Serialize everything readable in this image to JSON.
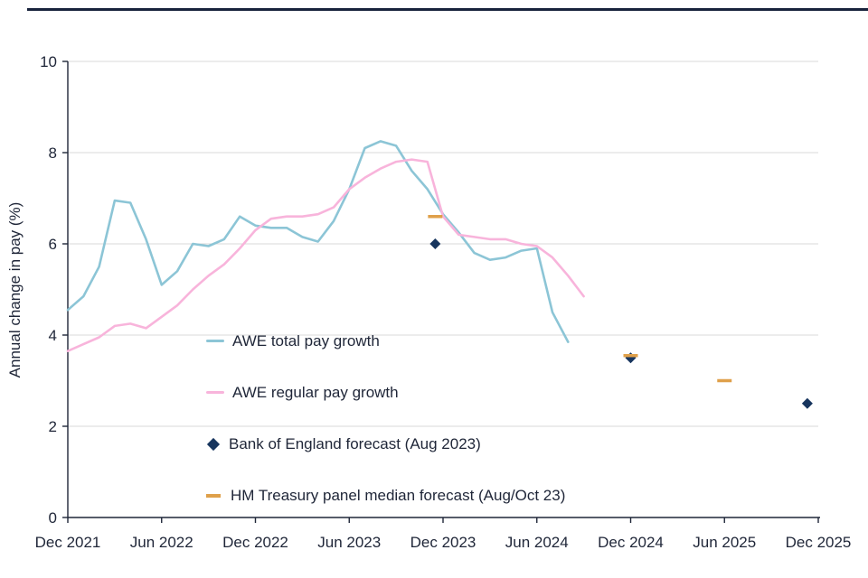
{
  "page": {
    "top_rule_color": "#18233C",
    "background": "#FFFFFF"
  },
  "chart_data": {
    "type": "line",
    "title": "",
    "xlabel": "",
    "ylabel": "Annual change in pay (%)",
    "ylim": [
      0,
      10
    ],
    "y_ticks": [
      0,
      2,
      4,
      6,
      8,
      10
    ],
    "x_tick_labels": [
      "Dec 2021",
      "Jun 2022",
      "Dec 2022",
      "Jun 2023",
      "Dec 2023",
      "Jun 2024",
      "Dec 2024",
      "Jun 2025",
      "Dec 2025"
    ],
    "x_tick_month_index": [
      0,
      6,
      12,
      18,
      24,
      30,
      36,
      42,
      48
    ],
    "months_total": 48,
    "grid": "horizontal-only",
    "legend_position": "inside-left",
    "colors": {
      "axis": "#1F2638",
      "grid": "#D9D9D9",
      "text": "#1F2638"
    },
    "series": [
      {
        "name": "AWE total pay growth",
        "color": "#8CC5D6",
        "start_month": 0,
        "values": [
          4.55,
          4.85,
          5.5,
          6.95,
          6.9,
          6.1,
          5.1,
          5.4,
          6.0,
          5.95,
          6.1,
          6.6,
          6.4,
          6.35,
          6.35,
          6.15,
          6.05,
          6.5,
          7.2,
          8.1,
          8.25,
          8.15,
          7.6,
          7.2,
          6.65,
          6.25,
          5.8,
          5.65,
          5.7,
          5.85,
          5.9,
          4.5,
          3.85
        ]
      },
      {
        "name": "AWE regular pay growth",
        "color": "#F8B4DB",
        "start_month": 0,
        "values": [
          3.65,
          3.8,
          3.95,
          4.2,
          4.25,
          4.15,
          4.4,
          4.65,
          5.0,
          5.3,
          5.55,
          5.9,
          6.3,
          6.55,
          6.6,
          6.6,
          6.65,
          6.8,
          7.2,
          7.45,
          7.65,
          7.8,
          7.85,
          7.8,
          6.6,
          6.2,
          6.15,
          6.1,
          6.1,
          6.0,
          5.95,
          5.7,
          5.3,
          4.85
        ]
      }
    ],
    "point_series": [
      {
        "name": "Bank of England forecast (Aug 2023)",
        "marker": "diamond",
        "color": "#17355E",
        "points": [
          {
            "label": "Dec 2023",
            "month": 23.5,
            "value": 6.0
          },
          {
            "label": "Dec 2024",
            "month": 36,
            "value": 3.5
          },
          {
            "label": "Dec 2025",
            "month": 47.3,
            "value": 2.5
          }
        ]
      },
      {
        "name": "HM Treasury panel median forecast (Aug/Oct 23)",
        "marker": "dash",
        "color": "#DFA04A",
        "points": [
          {
            "label": "Dec 2023",
            "month": 23.5,
            "value": 6.6
          },
          {
            "label": "Dec 2024",
            "month": 36,
            "value": 3.55
          },
          {
            "label": "Jun 2025",
            "month": 42,
            "value": 3.0
          }
        ]
      }
    ]
  }
}
